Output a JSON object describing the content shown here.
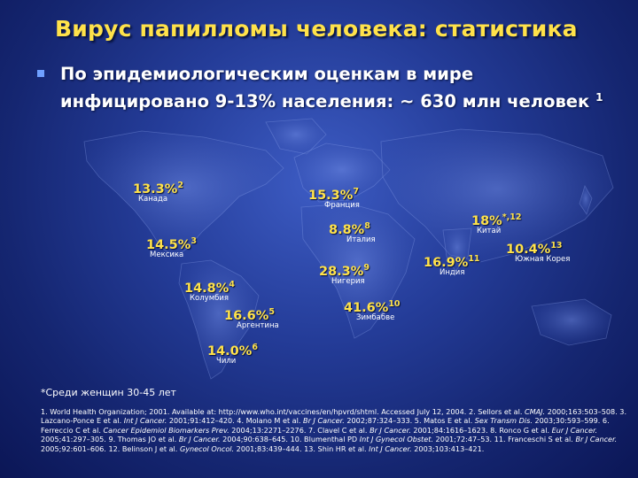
{
  "slide": {
    "title": "Вирус папилломы человека: статистика",
    "bullet_line1": "По эпидемиологическим оценкам в мире",
    "bullet_line2": "инфицировано 9-13% населения: ~ 630 млн человек",
    "bullet_sup": "1"
  },
  "map_labels": [
    {
      "value": "13.3%",
      "sup": "2",
      "country": "Канада"
    },
    {
      "value": "15.3%",
      "sup": "7",
      "country": "Франция"
    },
    {
      "value": "8.8%",
      "sup": "8",
      "country": "Италия"
    },
    {
      "value": "18%",
      "sup": "*,12",
      "country": "Китай"
    },
    {
      "value": "14.5%",
      "sup": "3",
      "country": "Мексика"
    },
    {
      "value": "16.9%",
      "sup": "11",
      "country": "Индия"
    },
    {
      "value": "10.4%",
      "sup": "13",
      "country": "Южная Корея"
    },
    {
      "value": "28.3%",
      "sup": "9",
      "country": "Нигерия"
    },
    {
      "value": "14.8%",
      "sup": "4",
      "country": "Колумбия"
    },
    {
      "value": "41.6%",
      "sup": "10",
      "country": "Зимбабве"
    },
    {
      "value": "16.6%",
      "sup": "5",
      "country": "Аргентина"
    },
    {
      "value": "14.0%",
      "sup": "6",
      "country": "Чили"
    }
  ],
  "footnote": "*Среди женщин 30-45 лет",
  "references": [
    {
      "t": "1. World Health Organization; 2001. Available at: http://www.who.int/vaccines/en/hpvrd/shtml. Accessed July 12, 2004.  2. Sellors et al. "
    },
    {
      "t": "CMAJ.",
      "i": true
    },
    {
      "t": " 2000;163:503–508. 3. Lazcano-Ponce E et al. "
    },
    {
      "t": "Int J Cancer.",
      "i": true
    },
    {
      "t": " 2001;91:412–420. 4. Molano M et al. "
    },
    {
      "t": "Br J Cancer.",
      "i": true
    },
    {
      "t": " 2002;87:324–333. 5. Matos E et al. "
    },
    {
      "t": "Sex Transm Dis.",
      "i": true
    },
    {
      "t": " 2003;30:593–599. 6. Ferreccio C et al. "
    },
    {
      "t": "Cancer Epidemiol Biomarkers Prev.",
      "i": true
    },
    {
      "t": " 2004;13:2271–2276. 7. Clavel C et al. "
    },
    {
      "t": "Br J Cancer.",
      "i": true
    },
    {
      "t": " 2001;84:1616–1623. 8. Ronco G et al. "
    },
    {
      "t": "Eur J Cancer.",
      "i": true
    },
    {
      "t": " 2005;41:297–305. 9. Thomas JO et al. "
    },
    {
      "t": "Br J Cancer.",
      "i": true
    },
    {
      "t": " 2004;90:638–645. 10. Blumenthal PD "
    },
    {
      "t": "Int J Gynecol Obstet.",
      "i": true
    },
    {
      "t": " 2001;72:47–53. 11. Franceschi S et al. "
    },
    {
      "t": "Br J Cancer.",
      "i": true
    },
    {
      "t": " 2005;92:601–606. 12. Belinson J et al. "
    },
    {
      "t": "Gynecol Oncol.",
      "i": true
    },
    {
      "t": " 2001;83:439–444. 13. Shin HR et al. "
    },
    {
      "t": "Int J Cancer.",
      "i": true
    },
    {
      "t": " 2003;103:413–421."
    }
  ]
}
